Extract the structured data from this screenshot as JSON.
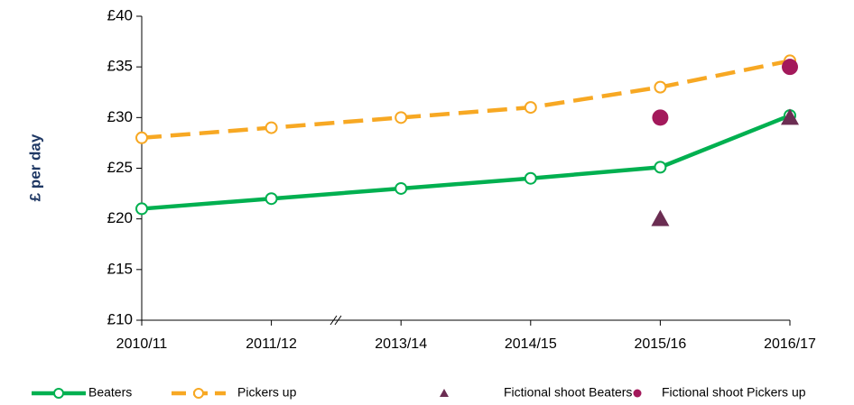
{
  "chart_data": {
    "type": "line",
    "y_label": "£ per day",
    "categories": [
      "2010/11",
      "2011/12",
      "2013/14",
      "2014/15",
      "2015/16",
      "2016/17"
    ],
    "ylim": [
      10,
      40
    ],
    "yticks": [
      {
        "value": 10,
        "label": "£10"
      },
      {
        "value": 15,
        "label": "£15"
      },
      {
        "value": 20,
        "label": "£20"
      },
      {
        "value": 25,
        "label": "£25"
      },
      {
        "value": 30,
        "label": "£30"
      },
      {
        "value": 35,
        "label": "£35"
      },
      {
        "value": 40,
        "label": "£40"
      }
    ],
    "grid": false,
    "legend": "bottom",
    "series": [
      {
        "name": "Beaters",
        "color": "#00b050",
        "line": "solid",
        "marker": "open-circle",
        "values": [
          21,
          22,
          23,
          24,
          25.1,
          30.2
        ]
      },
      {
        "name": "Pickers up",
        "color": "#f7a823",
        "line": "dashed",
        "marker": "open-circle",
        "values": [
          28,
          29,
          30,
          31,
          33,
          35.6
        ]
      },
      {
        "name": "Fictional shoot Beaters",
        "color": "#6b2d52",
        "line": "none",
        "marker": "triangle",
        "values": [
          null,
          null,
          null,
          null,
          20,
          30
        ]
      },
      {
        "name": "Fictional shoot Pickers up",
        "color": "#a3195b",
        "line": "none",
        "marker": "circle",
        "values": [
          null,
          null,
          null,
          null,
          30,
          35
        ]
      }
    ]
  }
}
